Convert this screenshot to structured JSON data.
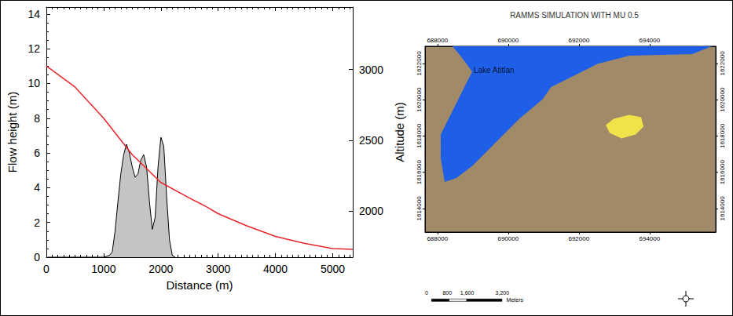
{
  "chart_data": [
    {
      "type": "line",
      "xlabel": "Distance (m)",
      "ylabel": "Flow height (m)",
      "y2label": "Altitude (m)",
      "xlim": [
        0,
        5350
      ],
      "xticks": [
        0,
        1000,
        2000,
        3000,
        4000,
        5000
      ],
      "ylim": [
        0,
        14.4
      ],
      "yticks": [
        0,
        2,
        4,
        6,
        8,
        10,
        12,
        14
      ],
      "y2lim": [
        1675,
        3440
      ],
      "y2ticks": [
        2000,
        2500,
        3000
      ],
      "grid": false,
      "series": [
        {
          "type": "area",
          "color": "#c4c4c4",
          "x": [
            0,
            1000,
            1100,
            1150,
            1200,
            1250,
            1300,
            1350,
            1400,
            1450,
            1500,
            1550,
            1600,
            1650,
            1700,
            1750,
            1800,
            1850,
            1900,
            1950,
            2000,
            2050,
            2100,
            2150,
            2200,
            2250
          ],
          "values": [
            0,
            0,
            0.1,
            0.3,
            1.5,
            3.2,
            4.8,
            5.9,
            6.5,
            6.0,
            5.2,
            4.6,
            4.8,
            5.6,
            5.9,
            5.2,
            3.2,
            1.6,
            2.3,
            5.2,
            6.9,
            6.4,
            3.5,
            1.0,
            0.1,
            0
          ]
        },
        {
          "type": "line",
          "axis": "y2",
          "color": "#e8262a",
          "x": [
            0,
            500,
            1000,
            1500,
            2000,
            2500,
            2800,
            3000,
            3500,
            4000,
            4500,
            5000,
            5350
          ],
          "values": [
            3024,
            2876,
            2656,
            2398,
            2202,
            2092,
            2030,
            1982,
            1896,
            1822,
            1773,
            1736,
            1730
          ]
        }
      ]
    },
    {
      "type": "map",
      "title": "RAMMS SIMULATION WITH MU 0.5",
      "color": "#a08a68",
      "xlim": [
        687650,
        695870
      ],
      "xticks": [
        688000,
        690000,
        692000,
        694000
      ],
      "ylim": [
        1612700,
        1622950
      ],
      "yticks": [
        1614000,
        1616000,
        1618000,
        1620000,
        1622000
      ],
      "shapes": [
        {
          "type": "polygon",
          "color": "#1f5fe8",
          "points": [
            [
              688428,
              1622950
            ],
            [
              695761,
              1622950
            ],
            [
              695206,
              1622515
            ],
            [
              693428,
              1622428
            ],
            [
              692539,
              1621993
            ],
            [
              691872,
              1621341
            ],
            [
              691206,
              1620689
            ],
            [
              690983,
              1620037
            ],
            [
              690317,
              1618950
            ],
            [
              689872,
              1618080
            ],
            [
              689428,
              1617211
            ],
            [
              688983,
              1616341
            ],
            [
              688539,
              1615689
            ],
            [
              688206,
              1615472
            ],
            [
              688094,
              1616776
            ],
            [
              688094,
              1618080
            ],
            [
              688428,
              1619385
            ],
            [
              688761,
              1620689
            ],
            [
              688983,
              1621559
            ],
            [
              688650,
              1622428
            ]
          ]
        },
        {
          "type": "polygon",
          "color": "#f2e24a",
          "points": [
            [
              692983,
              1618950
            ],
            [
              693428,
              1619167
            ],
            [
              693761,
              1619037
            ],
            [
              693828,
              1618515
            ],
            [
              693606,
              1618080
            ],
            [
              693206,
              1617863
            ],
            [
              692872,
              1618167
            ],
            [
              692761,
              1618602
            ]
          ]
        }
      ],
      "annotations": [
        {
          "text": "Lake Atitlan",
          "x": 689600,
          "y": 1621650
        }
      ],
      "scale_bar": {
        "ticks": [
          0,
          800,
          {
            "value": 1600,
            "label": "1,600"
          },
          {
            "value": 3200,
            "label": "3,200"
          }
        ],
        "unit": "Meters"
      }
    }
  ]
}
